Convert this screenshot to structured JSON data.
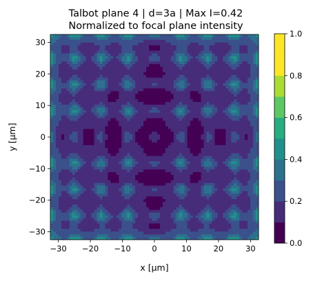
{
  "chart_data": {
    "type": "heatmap",
    "title_line1": "Talbot plane 4 | d=3a | Max I=0.42",
    "title_line2": "Normalized to focal plane intensity",
    "xlabel": "x [μm]",
    "ylabel": "y [μm]",
    "xlim": [
      -32.5,
      32.5
    ],
    "ylim": [
      -32.5,
      32.5
    ],
    "xticks": [
      -30,
      -20,
      -10,
      0,
      10,
      20,
      30
    ],
    "yticks": [
      -30,
      -20,
      -10,
      0,
      10,
      20,
      30
    ],
    "xtick_labels": [
      "−30",
      "−20",
      "−10",
      "0",
      "10",
      "20",
      "30"
    ],
    "ytick_labels": [
      "−30",
      "−20",
      "−10",
      "0",
      "10",
      "20",
      "30"
    ],
    "period": 8.3,
    "max_intensity": 0.42,
    "colorbar": {
      "levels": [
        0.0,
        0.1,
        0.2,
        0.3,
        0.4,
        0.5,
        0.6,
        0.7,
        0.8,
        0.9,
        1.0
      ],
      "tick_values": [
        0.0,
        0.2,
        0.4,
        0.6,
        0.8,
        1.0
      ],
      "tick_labels": [
        "0.0",
        "0.2",
        "0.4",
        "0.6",
        "0.8",
        "1.0"
      ],
      "colors": [
        "#440154",
        "#472c7a",
        "#3b518b",
        "#2c718e",
        "#21908d",
        "#27ad81",
        "#5cc863",
        "#aadc32",
        "#fde725",
        "#fde725"
      ]
    },
    "features": {
      "background_level": 0.1,
      "interior_spot_level": 0.3,
      "edge_spot_level": 0.4
    }
  }
}
